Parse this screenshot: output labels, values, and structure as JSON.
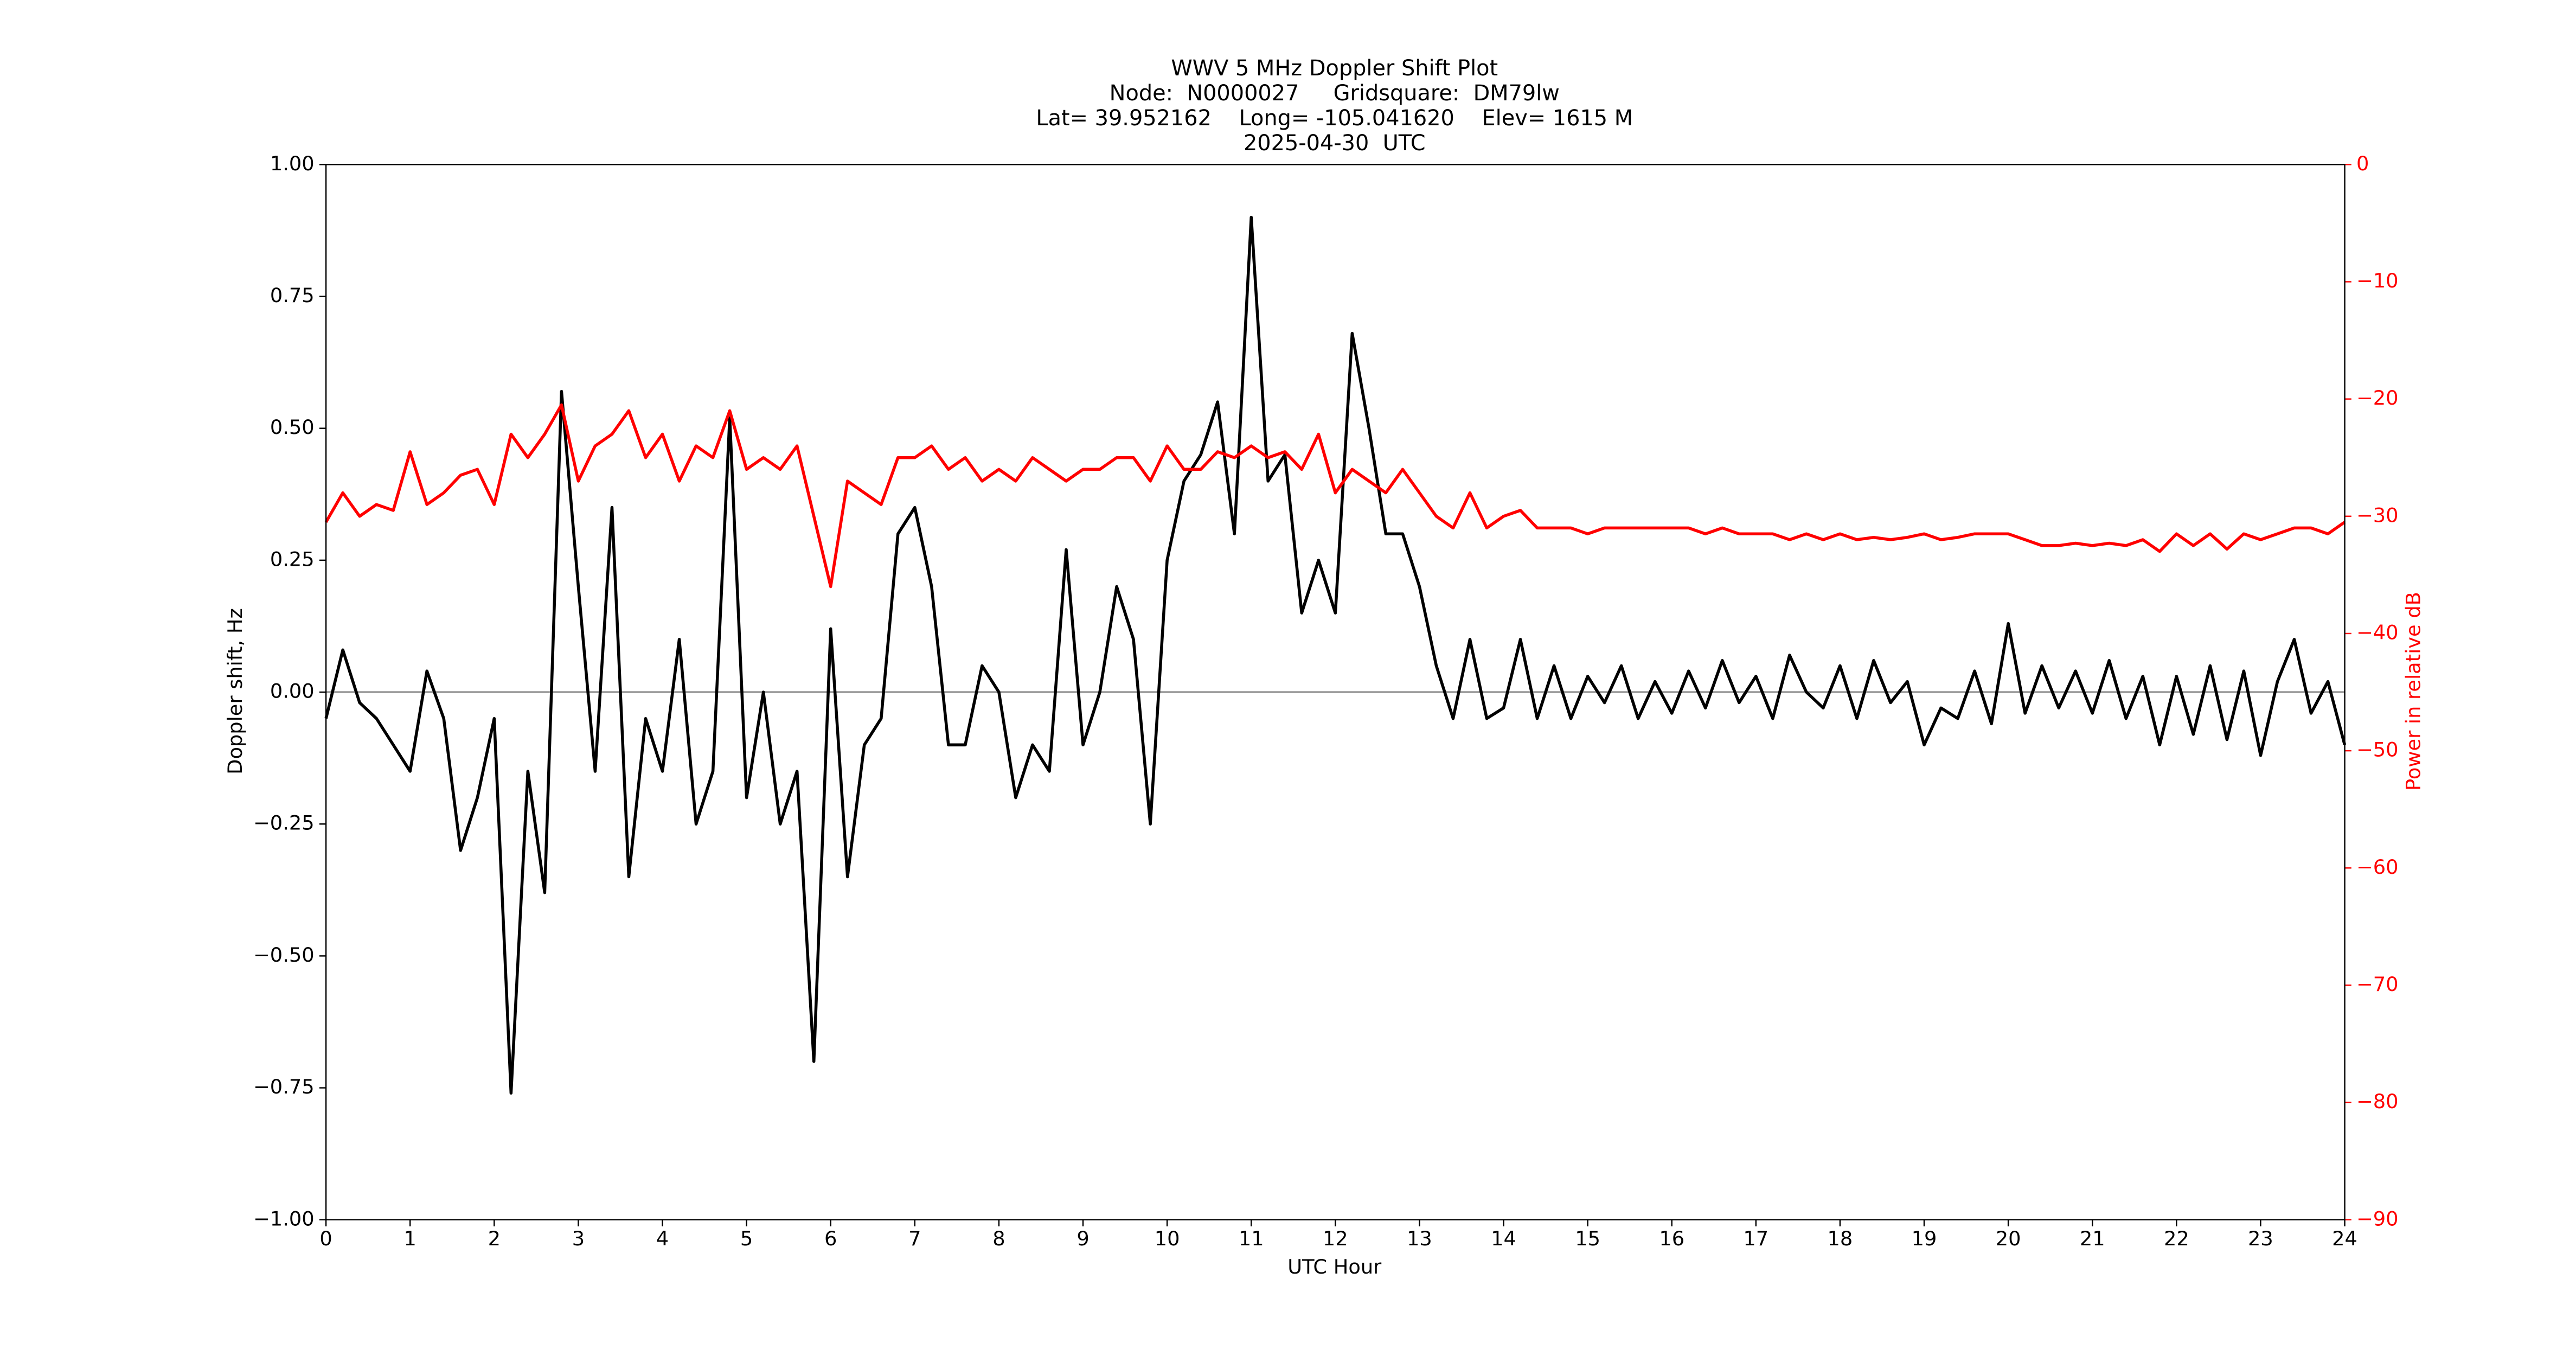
{
  "chart_data": {
    "type": "line",
    "title": [
      "WWV 5 MHz Doppler Shift Plot",
      "Node:  N0000027     Gridsquare:  DM79lw",
      "Lat= 39.952162    Long= -105.041620    Elev= 1615 M",
      "2025-04-30  UTC"
    ],
    "xlabel": "UTC Hour",
    "ylabel": "Doppler shift, Hz",
    "y2label": "Power in relative dB",
    "x": [
      0,
      0.2,
      0.4,
      0.6,
      0.8,
      1,
      1.2,
      1.4,
      1.6,
      1.8,
      2,
      2.2,
      2.4,
      2.6,
      2.8,
      3,
      3.2,
      3.4,
      3.6,
      3.8,
      4,
      4.2,
      4.4,
      4.6,
      4.8,
      5,
      5.2,
      5.4,
      5.6,
      5.8,
      6,
      6.2,
      6.4,
      6.6,
      6.8,
      7,
      7.2,
      7.4,
      7.6,
      7.8,
      8,
      8.2,
      8.4,
      8.6,
      8.8,
      9,
      9.2,
      9.4,
      9.6,
      9.8,
      10,
      10.2,
      10.4,
      10.6,
      10.8,
      11,
      11.2,
      11.4,
      11.6,
      11.8,
      12,
      12.2,
      12.4,
      12.6,
      12.8,
      13,
      13.2,
      13.4,
      13.6,
      13.8,
      14,
      14.2,
      14.4,
      14.6,
      14.8,
      15,
      15.2,
      15.4,
      15.6,
      15.8,
      16,
      16.2,
      16.4,
      16.6,
      16.8,
      17,
      17.2,
      17.4,
      17.6,
      17.8,
      18,
      18.2,
      18.4,
      18.6,
      18.8,
      19,
      19.2,
      19.4,
      19.6,
      19.8,
      20,
      20.2,
      20.4,
      20.6,
      20.8,
      21,
      21.2,
      21.4,
      21.6,
      21.8,
      22,
      22.2,
      22.4,
      22.6,
      22.8,
      23,
      23.2,
      23.4,
      23.6,
      23.8,
      24
    ],
    "series": [
      {
        "name": "Doppler shift",
        "color": "#000000",
        "values": [
          -0.05,
          0.08,
          -0.02,
          -0.05,
          -0.1,
          -0.15,
          0.04,
          -0.05,
          -0.3,
          -0.2,
          -0.05,
          -0.76,
          -0.15,
          -0.38,
          0.57,
          0.2,
          -0.15,
          0.35,
          -0.35,
          -0.05,
          -0.15,
          0.1,
          -0.25,
          -0.15,
          0.52,
          -0.2,
          0.0,
          -0.25,
          -0.15,
          -0.7,
          0.12,
          -0.35,
          -0.1,
          -0.05,
          0.3,
          0.35,
          0.2,
          -0.1,
          -0.1,
          0.05,
          0.0,
          -0.2,
          -0.1,
          -0.15,
          0.27,
          -0.1,
          0.0,
          0.2,
          0.1,
          -0.25,
          0.25,
          0.4,
          0.45,
          0.55,
          0.3,
          0.9,
          0.4,
          0.45,
          0.15,
          0.25,
          0.15,
          0.68,
          0.5,
          0.3,
          0.3,
          0.2,
          0.05,
          -0.05,
          0.1,
          -0.05,
          -0.03,
          0.1,
          -0.05,
          0.05,
          -0.05,
          0.03,
          -0.02,
          0.05,
          -0.05,
          0.02,
          -0.04,
          0.04,
          -0.03,
          0.06,
          -0.02,
          0.03,
          -0.05,
          0.07,
          0.0,
          -0.03,
          0.05,
          -0.05,
          0.06,
          -0.02,
          0.02,
          -0.1,
          -0.03,
          -0.05,
          0.04,
          -0.06,
          0.13,
          -0.04,
          0.05,
          -0.03,
          0.04,
          -0.04,
          0.06,
          -0.05,
          0.03,
          -0.1,
          0.03,
          -0.08,
          0.05,
          -0.09,
          0.04,
          -0.12,
          0.02,
          0.1,
          -0.04,
          0.02,
          -0.1
        ]
      },
      {
        "name": "Power",
        "color": "#ff0000",
        "axis": "y2",
        "values": [
          -30.5,
          -28,
          -30,
          -29,
          -29.5,
          -24.5,
          -29,
          -28,
          -26.5,
          -26,
          -29,
          -23,
          -25,
          -23,
          -20.5,
          -27,
          -24,
          -23,
          -21,
          -25,
          -23,
          -27,
          -24,
          -25,
          -21,
          -26,
          -25,
          -26,
          -24,
          -30,
          -36,
          -27,
          -28,
          -29,
          -25,
          -25,
          -24,
          -26,
          -25,
          -27,
          -26,
          -27,
          -25,
          -26,
          -27,
          -26,
          -26,
          -25,
          -25,
          -27,
          -24,
          -26,
          -26,
          -24.5,
          -25,
          -24,
          -25,
          -24.5,
          -26,
          -23,
          -28,
          -26,
          -27,
          -28,
          -26,
          -28,
          -30,
          -31,
          -28,
          -31,
          -30,
          -29.5,
          -31,
          -31,
          -31,
          -31.5,
          -31,
          -31,
          -31,
          -31,
          -31,
          -31,
          -31.5,
          -31,
          -31.5,
          -31.5,
          -31.5,
          -32,
          -31.5,
          -32,
          -31.5,
          -32,
          -31.8,
          -32,
          -31.8,
          -31.5,
          -32,
          -31.8,
          -31.5,
          -31.5,
          -31.5,
          -32,
          -32.5,
          -32.5,
          -32.3,
          -32.5,
          -32.3,
          -32.5,
          -32,
          -33,
          -31.5,
          -32.5,
          -31.5,
          -32.8,
          -31.5,
          -32,
          -31.5,
          -31,
          -31,
          -31.5,
          -30.5
        ]
      }
    ],
    "axhline": 0,
    "axhline_color": "#999999",
    "xlim": [
      0,
      24
    ],
    "xticks": [
      0,
      1,
      2,
      3,
      4,
      5,
      6,
      7,
      8,
      9,
      10,
      11,
      12,
      13,
      14,
      15,
      16,
      17,
      18,
      19,
      20,
      21,
      22,
      23,
      24
    ],
    "ylim": [
      -1,
      1
    ],
    "yticks": [
      {
        "value": -1,
        "label": "−1.00"
      },
      {
        "value": -0.75,
        "label": "−0.75"
      },
      {
        "value": -0.5,
        "label": "−0.50"
      },
      {
        "value": -0.25,
        "label": "−0.25"
      },
      {
        "value": 0,
        "label": "0.00"
      },
      {
        "value": 0.25,
        "label": "0.25"
      },
      {
        "value": 0.5,
        "label": "0.50"
      },
      {
        "value": 0.75,
        "label": "0.75"
      },
      {
        "value": 1,
        "label": "1.00"
      }
    ],
    "y2lim": [
      -90,
      0
    ],
    "y2ticks": [
      {
        "value": -90,
        "label": "−90"
      },
      {
        "value": -80,
        "label": "−80"
      },
      {
        "value": -70,
        "label": "−70"
      },
      {
        "value": -60,
        "label": "−60"
      },
      {
        "value": -50,
        "label": "−50"
      },
      {
        "value": -40,
        "label": "−40"
      },
      {
        "value": -30,
        "label": "−30"
      },
      {
        "value": -20,
        "label": "−20"
      },
      {
        "value": -10,
        "label": "−10"
      },
      0
    ],
    "y2color": "#ff0000",
    "grid": false
  }
}
